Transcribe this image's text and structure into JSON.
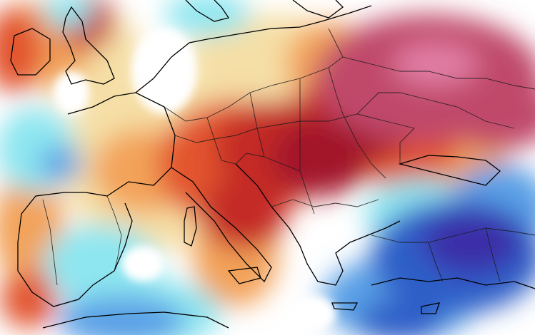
{
  "map": {
    "type": "temperature-anomaly-map",
    "region": "Europe",
    "palette": {
      "cold_deep": "#3a2fa8",
      "cold_strong": "#2f5fc8",
      "cold_mid": "#5aa0e6",
      "cold_light": "#8ee6f0",
      "neutral": "#ffffff",
      "warm_light": "#f5dfa6",
      "warm_mid": "#f3a35a",
      "warm_strong": "#e2552d",
      "hot": "#c42a26",
      "very_hot": "#a3182c",
      "extreme": "#c0486a",
      "extreme_light": "#e27ea4",
      "border": "#1a1a1a",
      "coast": "#000000"
    },
    "legend_visible": false,
    "title": ""
  }
}
